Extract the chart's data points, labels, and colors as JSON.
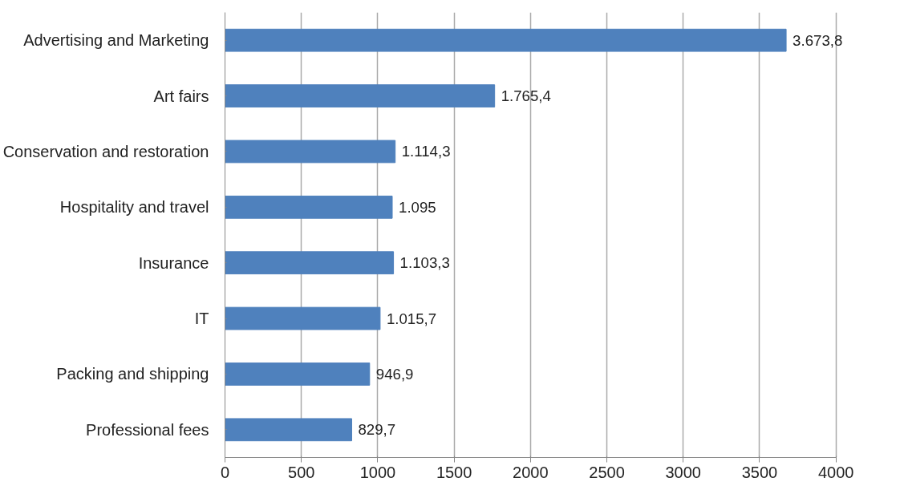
{
  "chart_data": {
    "type": "bar",
    "orientation": "horizontal",
    "categories": [
      "Advertising and Marketing",
      "Art fairs",
      "Conservation and restoration",
      "Hospitality and travel",
      "Insurance",
      "IT",
      "Packing and shipping",
      "Professional fees"
    ],
    "values": [
      3673.8,
      1765.4,
      1114.3,
      1095,
      1103.3,
      1015.7,
      946.9,
      829.7
    ],
    "value_labels": [
      "3.673,8",
      "1.765,4",
      "1.114,3",
      "1.095",
      "1.103,3",
      "1.015,7",
      "946,9",
      "829,7"
    ],
    "color": "#4f81bd",
    "xlim": [
      0,
      4000
    ],
    "xticks": [
      0,
      500,
      1000,
      1500,
      2000,
      2500,
      3000,
      3500,
      4000
    ],
    "grid": "x"
  }
}
